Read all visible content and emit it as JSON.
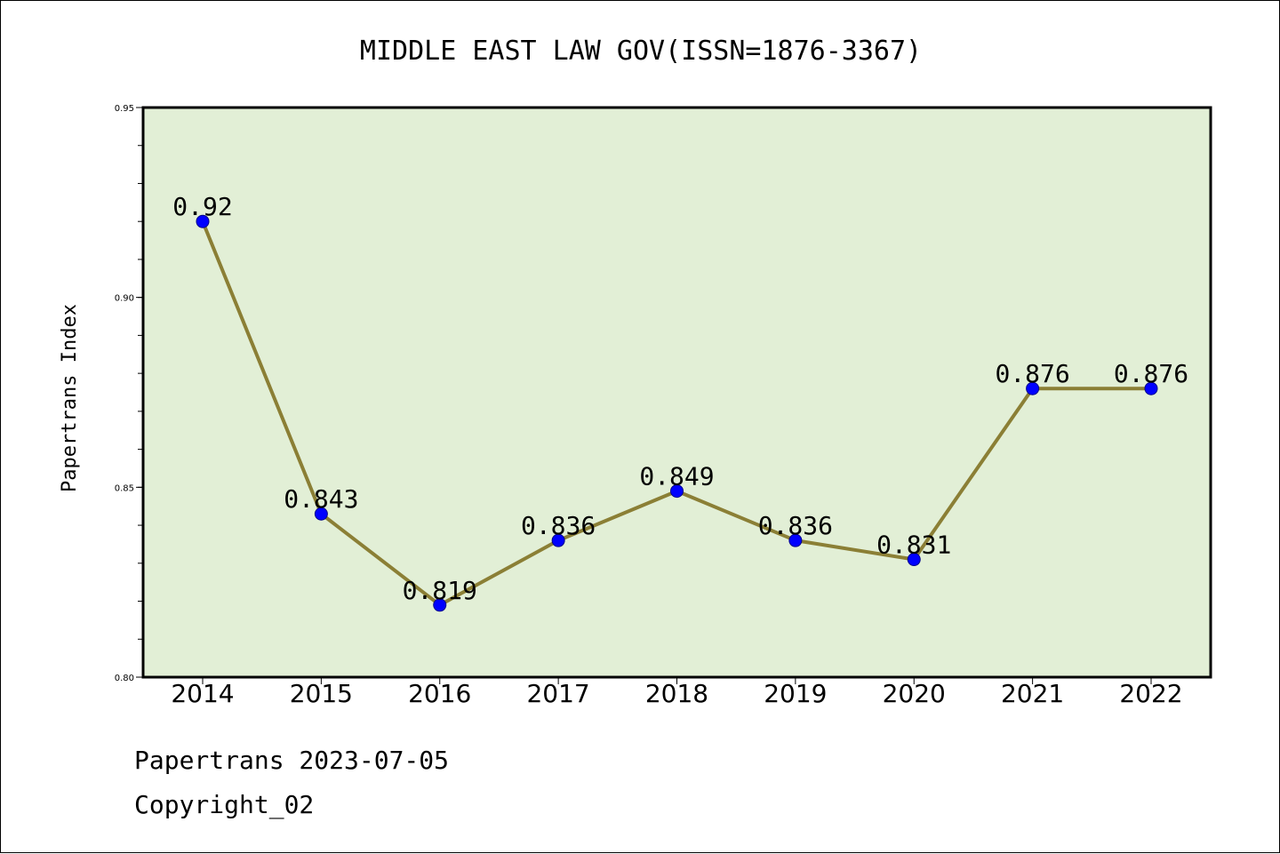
{
  "chart_data": {
    "type": "line",
    "title": "MIDDLE EAST LAW GOV(ISSN=1876-3367)",
    "xlabel": "",
    "ylabel": "Papertrans Index",
    "categories": [
      "2014",
      "2015",
      "2016",
      "2017",
      "2018",
      "2019",
      "2020",
      "2021",
      "2022"
    ],
    "values": [
      0.92,
      0.843,
      0.819,
      0.836,
      0.849,
      0.836,
      0.831,
      0.876,
      0.876
    ],
    "data_labels": [
      "0.92",
      "0.843",
      "0.819",
      "0.836",
      "0.849",
      "0.836",
      "0.831",
      "0.876",
      "0.876"
    ],
    "ylim": [
      0.8,
      0.95
    ],
    "yticks": [
      0.8,
      0.85,
      0.9,
      0.95
    ],
    "ytick_labels": [
      "0.80",
      "0.85",
      "0.90",
      "0.95"
    ],
    "grid": false,
    "plot_background": "#e2efd6",
    "line_color": "#8b7f35",
    "marker_color": "#0000ff"
  },
  "footer": {
    "source": "Papertrans 2023-07-05",
    "copyright": "Copyright_02"
  }
}
